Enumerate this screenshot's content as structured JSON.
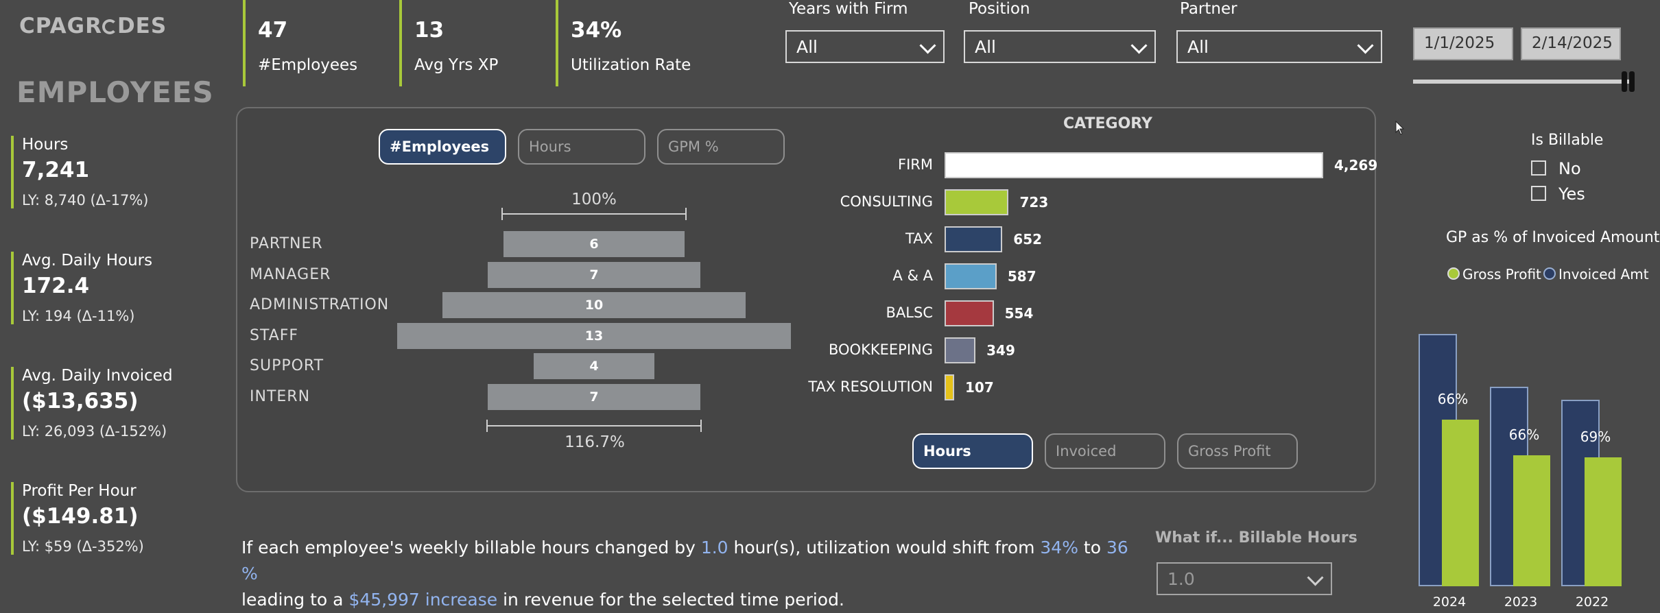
{
  "logo": {
    "pre": "CPA",
    "post": "R",
    "mid": "G",
    "tail": "DES"
  },
  "page_title": "EMPLOYEES",
  "kpis": [
    {
      "label": "Hours",
      "value": "7,241",
      "ly": "LY: 8,740 (Δ-17%)"
    },
    {
      "label": "Avg. Daily Hours",
      "value": "172.4",
      "ly": "LY: 194 (Δ-11%)"
    },
    {
      "label": "Avg. Daily Invoiced",
      "value": "($13,635)",
      "ly": "LY: 26,093 (Δ-152%)"
    },
    {
      "label": "Profit Per Hour",
      "value": "($149.81)",
      "ly": "LY: $59 (Δ-352%)"
    }
  ],
  "top_cards": [
    {
      "value": "47",
      "label": "#Employees"
    },
    {
      "value": "13",
      "label": "Avg Yrs XP"
    },
    {
      "value": "34%",
      "label": "Utilization Rate"
    }
  ],
  "slicers": [
    {
      "label": "Years with Firm",
      "value": "All"
    },
    {
      "label": "Position",
      "value": "All"
    },
    {
      "label": "Partner",
      "value": "All"
    }
  ],
  "dates": {
    "start": "1/1/2025",
    "end": "2/14/2025"
  },
  "funnel_toggle": [
    "#Employees",
    "Hours",
    "GPM %"
  ],
  "funnel": {
    "top_caption": "100%",
    "bottom_caption": "116.7%",
    "rows": [
      {
        "label": "PARTNER",
        "value": 6
      },
      {
        "label": "MANAGER",
        "value": 7
      },
      {
        "label": "ADMINISTRATION",
        "value": 10
      },
      {
        "label": "STAFF",
        "value": 13
      },
      {
        "label": "SUPPORT",
        "value": 4
      },
      {
        "label": "INTERN",
        "value": 7
      }
    ]
  },
  "category": {
    "title": "CATEGORY",
    "max": 4269,
    "rows": [
      {
        "label": "FIRM",
        "value": 4269,
        "display": "4,269",
        "color": "#ffffff"
      },
      {
        "label": "CONSULTING",
        "value": 723,
        "display": "723",
        "color": "#a8c93a"
      },
      {
        "label": "TAX",
        "value": 652,
        "display": "652",
        "color": "#2d4468"
      },
      {
        "label": "A & A",
        "value": 587,
        "display": "587",
        "color": "#5b9fc8"
      },
      {
        "label": "BALSC",
        "value": 554,
        "display": "554",
        "color": "#a5393f"
      },
      {
        "label": "BOOKKEEPING",
        "value": 349,
        "display": "349",
        "color": "#6c7288"
      },
      {
        "label": "TAX RESOLUTION",
        "value": 107,
        "display": "107",
        "color": "#e6c21a"
      }
    ]
  },
  "category_toggle": [
    "Hours",
    "Invoiced",
    "Gross Profit"
  ],
  "whatif_text": {
    "p1": "If each employee's weekly billable hours changed by ",
    "hours": "1.0",
    "p2": " hour(s), utilization would shift from ",
    "from": "34%",
    "p3": " to ",
    "to": "36 %",
    "p4": "leading to a ",
    "increase": "$45,997 increase",
    "p5": " in revenue for the selected time period."
  },
  "whatif_slicer": {
    "label": "What if... Billable Hours",
    "value": "1.0"
  },
  "is_billable": {
    "title": "Is Billable",
    "options": [
      "No",
      "Yes"
    ]
  },
  "gp_chart": {
    "title": "GP as % of Invoiced Amount",
    "legend": [
      {
        "name": "Gross Profit",
        "color": "#a8c93a"
      },
      {
        "name": "Invoiced Amt",
        "color": "#2b3d63"
      }
    ],
    "ymax": 100,
    "bars": [
      {
        "year": "2024",
        "invoiced": 100,
        "profit": 66,
        "label": "66%"
      },
      {
        "year": "2023",
        "invoiced": 79,
        "profit": 52,
        "label": "66%"
      },
      {
        "year": "2022",
        "invoiced": 74,
        "profit": 51,
        "label": "69%"
      }
    ]
  },
  "colors": {
    "accent": "#a8c93a",
    "navy": "#2d4468",
    "background": "#494949"
  }
}
